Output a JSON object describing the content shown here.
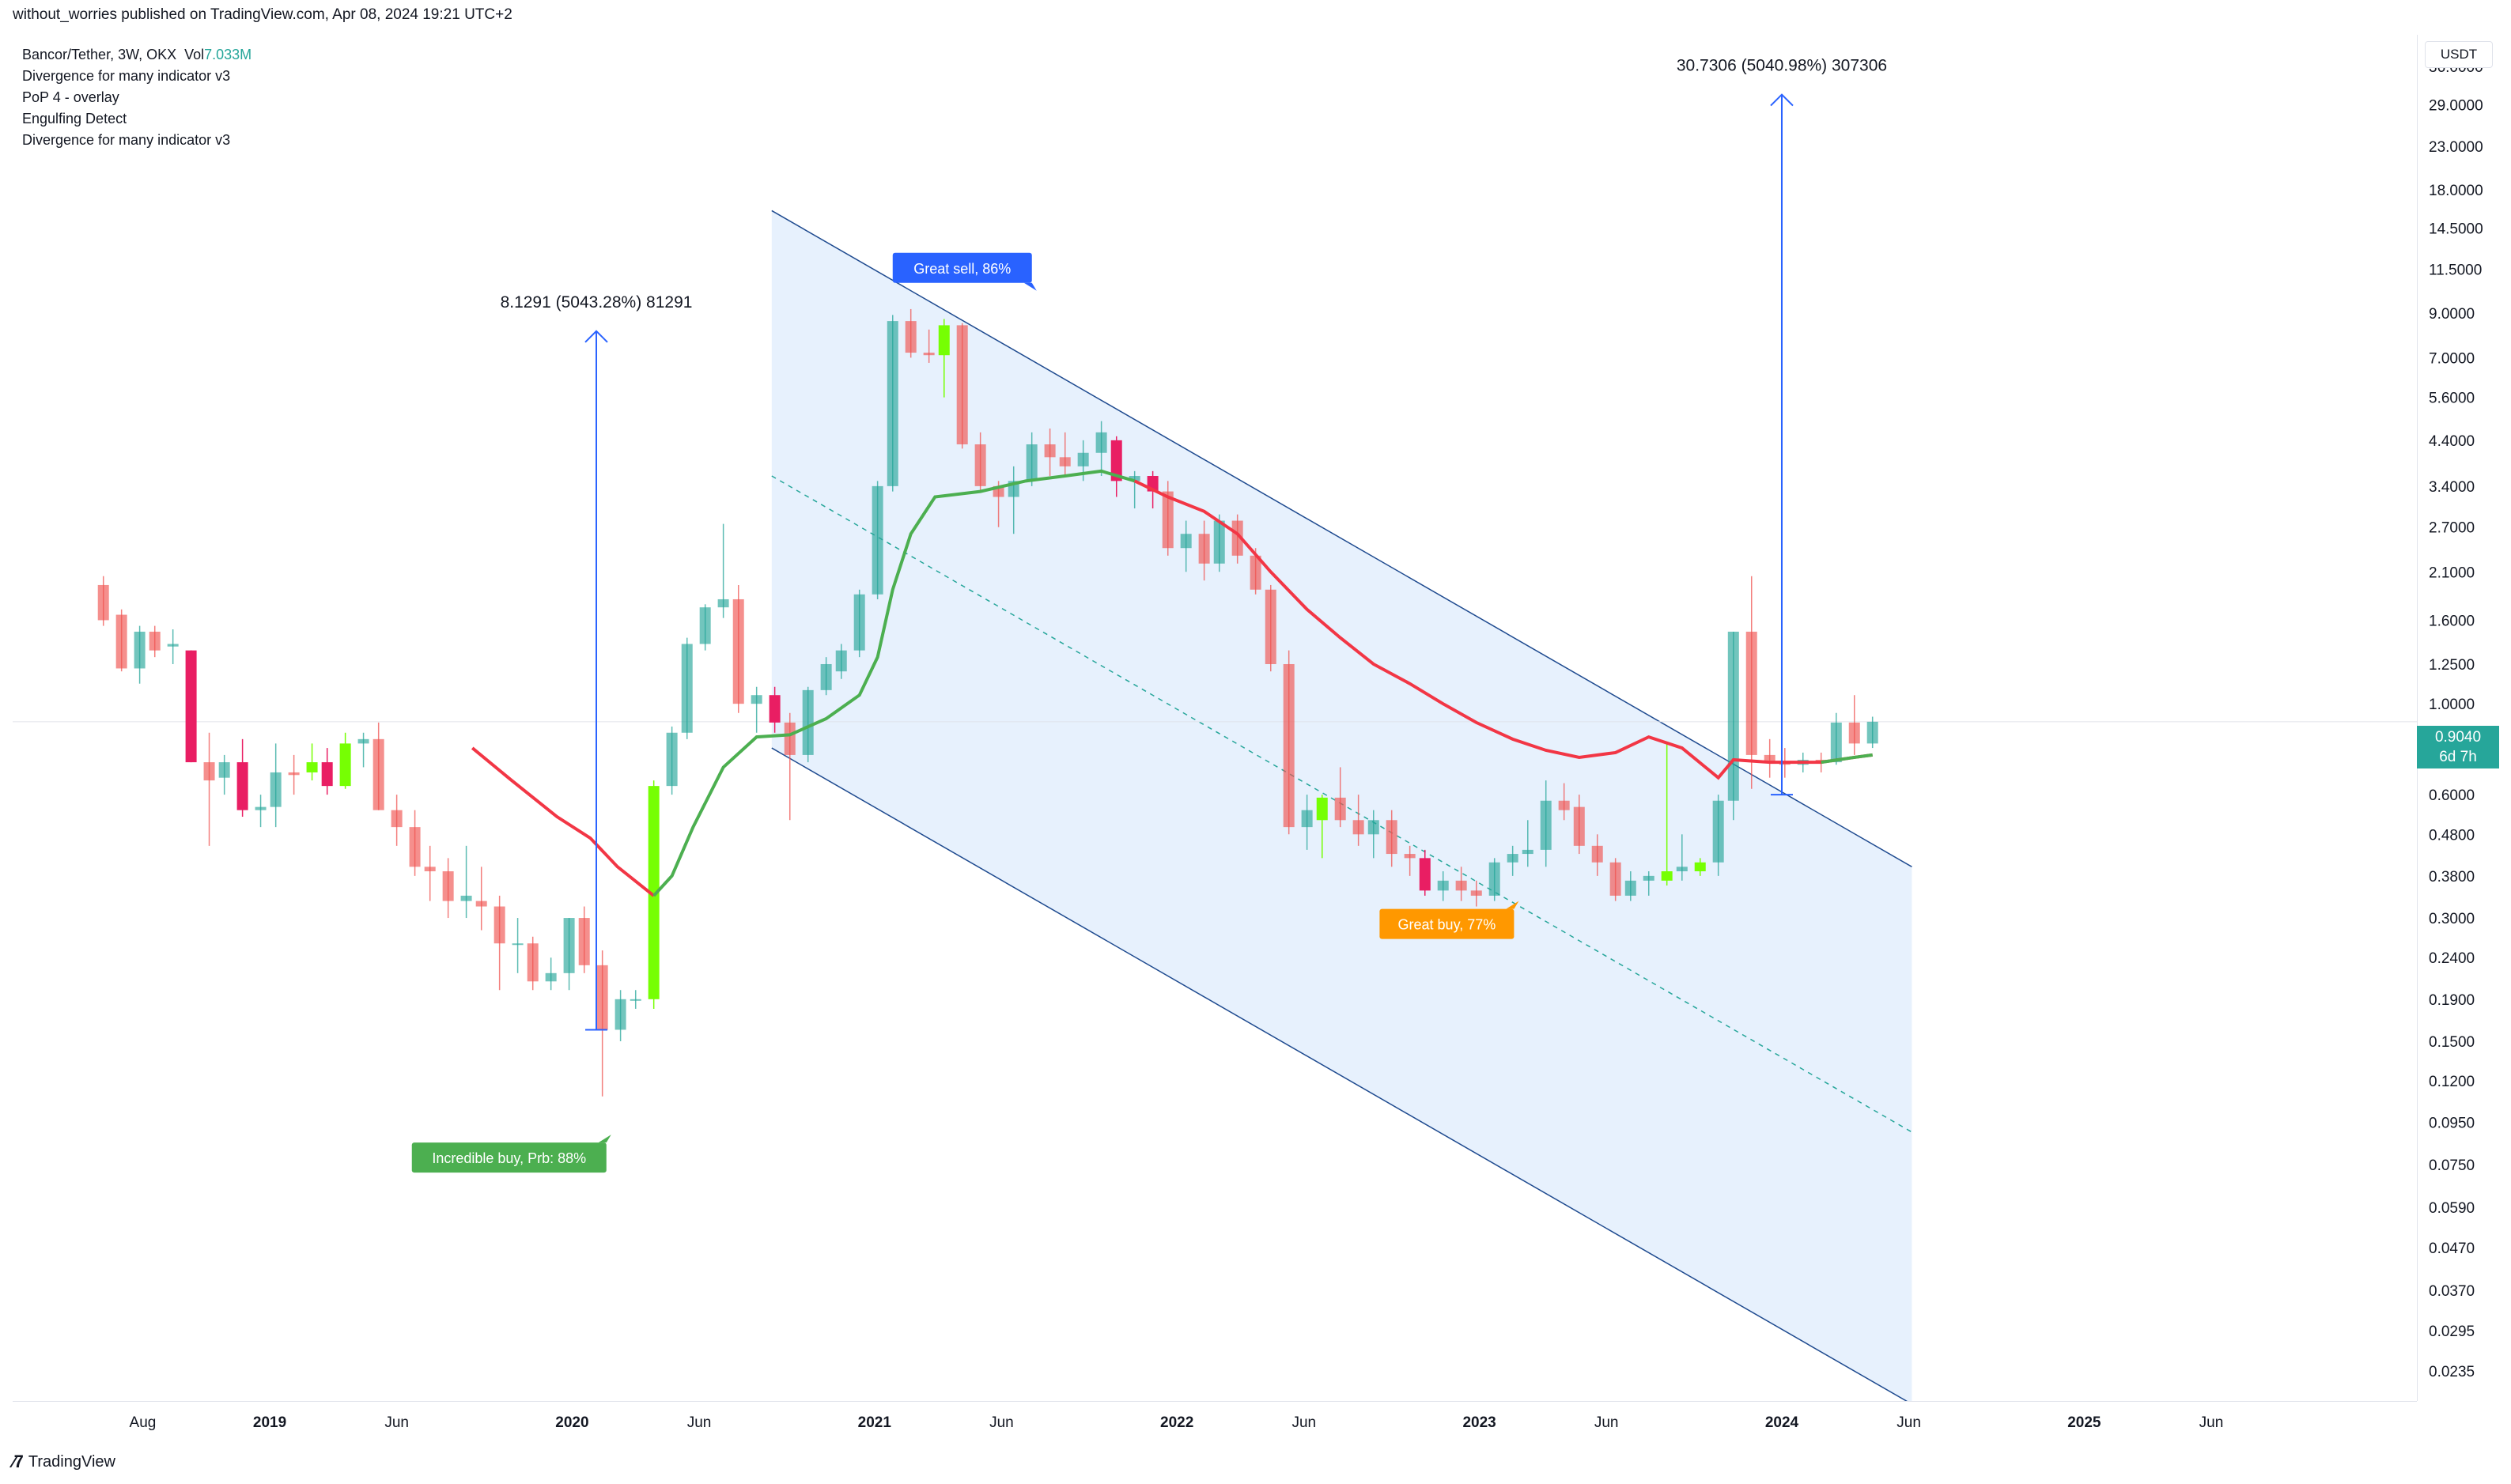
{
  "header": {
    "publish_text": "without_worries published on TradingView.com, Apr 08, 2024 19:21 UTC+2"
  },
  "legend": {
    "symbol_line": "Bancor/Tether, 3W, OKX",
    "vol_label": "Vol",
    "vol_value": "7.033M",
    "indicators": [
      "Divergence for many indicator v3",
      "PoP 4 - overlay",
      "Engulfing Detect",
      "Divergence for many indicator v3"
    ]
  },
  "price_axis": {
    "unit": "USDT",
    "last_price": "0.9040",
    "countdown": "6d 7h"
  },
  "footer": {
    "brand": "TradingView"
  },
  "colors": {
    "up": "#26a69a",
    "down": "#ef5350",
    "engulf_up": "#76ff03",
    "engulf_down": "#e91e63",
    "channel_fill": "#e3effd",
    "channel_line": "#1e4a8f",
    "measure": "#2962ff",
    "ma_green": "#4caf50",
    "ma_red": "#f23645",
    "label_sell": "#2962ff",
    "label_buy": "#ff9800",
    "label_incredible": "#4caf50"
  },
  "chart_data": {
    "type": "candlestick",
    "scale": "log",
    "ylim": [
      0.0235,
      36.0
    ],
    "price_ticks": [
      36.0,
      29.0,
      23.0,
      18.0,
      14.5,
      11.5,
      9.0,
      7.0,
      5.6,
      4.4,
      3.4,
      2.7,
      2.1,
      1.6,
      1.25,
      1.0,
      0.6,
      0.48,
      0.38,
      0.3,
      0.24,
      0.19,
      0.15,
      0.12,
      0.095,
      0.075,
      0.059,
      0.047,
      0.037,
      0.0295,
      0.0235
    ],
    "price_tick_labels": [
      "36.0000",
      "29.0000",
      "23.0000",
      "18.0000",
      "14.5000",
      "11.5000",
      "9.0000",
      "7.0000",
      "5.6000",
      "4.4000",
      "3.4000",
      "2.7000",
      "2.1000",
      "1.6000",
      "1.2500",
      "1.0000",
      "0.6000",
      "0.4800",
      "0.3800",
      "0.3000",
      "0.2400",
      "0.1900",
      "0.1500",
      "0.1200",
      "0.0950",
      "0.0750",
      "0.0590",
      "0.0470",
      "0.0370",
      "0.0295",
      "0.0235"
    ],
    "time_ticks": [
      {
        "label": "Aug",
        "t": 2018.58,
        "bold": false
      },
      {
        "label": "2019",
        "t": 2019.0,
        "bold": true
      },
      {
        "label": "Jun",
        "t": 2019.42,
        "bold": false
      },
      {
        "label": "2020",
        "t": 2020.0,
        "bold": true
      },
      {
        "label": "Jun",
        "t": 2020.42,
        "bold": false
      },
      {
        "label": "2021",
        "t": 2021.0,
        "bold": true
      },
      {
        "label": "Jun",
        "t": 2021.42,
        "bold": false
      },
      {
        "label": "2022",
        "t": 2022.0,
        "bold": true
      },
      {
        "label": "Jun",
        "t": 2022.42,
        "bold": false
      },
      {
        "label": "2023",
        "t": 2023.0,
        "bold": true
      },
      {
        "label": "Jun",
        "t": 2023.42,
        "bold": false
      },
      {
        "label": "2024",
        "t": 2024.0,
        "bold": true
      },
      {
        "label": "Jun",
        "t": 2024.42,
        "bold": false
      },
      {
        "label": "2025",
        "t": 2025.0,
        "bold": true
      },
      {
        "label": "Jun",
        "t": 2025.42,
        "bold": false
      }
    ],
    "xlim": [
      2018.15,
      2026.1
    ],
    "candles": [
      {
        "t": 2018.45,
        "o": 1.95,
        "h": 2.05,
        "l": 1.55,
        "c": 1.6
      },
      {
        "t": 2018.51,
        "o": 1.65,
        "h": 1.7,
        "l": 1.2,
        "c": 1.22
      },
      {
        "t": 2018.57,
        "o": 1.22,
        "h": 1.55,
        "l": 1.12,
        "c": 1.5
      },
      {
        "t": 2018.62,
        "o": 1.5,
        "h": 1.55,
        "l": 1.3,
        "c": 1.35
      },
      {
        "t": 2018.68,
        "o": 1.38,
        "h": 1.52,
        "l": 1.25,
        "c": 1.4
      },
      {
        "t": 2018.74,
        "o": 1.35,
        "h": 1.35,
        "l": 0.72,
        "c": 0.72,
        "e": "down"
      },
      {
        "t": 2018.8,
        "o": 0.72,
        "h": 0.85,
        "l": 0.45,
        "c": 0.65
      },
      {
        "t": 2018.85,
        "o": 0.66,
        "h": 0.75,
        "l": 0.6,
        "c": 0.72
      },
      {
        "t": 2018.91,
        "o": 0.72,
        "h": 0.82,
        "l": 0.53,
        "c": 0.55,
        "e": "down"
      },
      {
        "t": 2018.97,
        "o": 0.55,
        "h": 0.6,
        "l": 0.5,
        "c": 0.56
      },
      {
        "t": 2019.02,
        "o": 0.56,
        "h": 0.8,
        "l": 0.5,
        "c": 0.68
      },
      {
        "t": 2019.08,
        "o": 0.68,
        "h": 0.75,
        "l": 0.6,
        "c": 0.67
      },
      {
        "t": 2019.14,
        "o": 0.68,
        "h": 0.8,
        "l": 0.65,
        "c": 0.72,
        "e": "up"
      },
      {
        "t": 2019.19,
        "o": 0.72,
        "h": 0.78,
        "l": 0.6,
        "c": 0.63,
        "e": "down"
      },
      {
        "t": 2019.25,
        "o": 0.63,
        "h": 0.85,
        "l": 0.62,
        "c": 0.8,
        "e": "up"
      },
      {
        "t": 2019.31,
        "o": 0.8,
        "h": 0.85,
        "l": 0.7,
        "c": 0.82
      },
      {
        "t": 2019.36,
        "o": 0.82,
        "h": 0.9,
        "l": 0.55,
        "c": 0.55
      },
      {
        "t": 2019.42,
        "o": 0.55,
        "h": 0.6,
        "l": 0.45,
        "c": 0.5
      },
      {
        "t": 2019.48,
        "o": 0.5,
        "h": 0.55,
        "l": 0.38,
        "c": 0.4
      },
      {
        "t": 2019.53,
        "o": 0.4,
        "h": 0.45,
        "l": 0.33,
        "c": 0.39
      },
      {
        "t": 2019.59,
        "o": 0.39,
        "h": 0.42,
        "l": 0.3,
        "c": 0.33
      },
      {
        "t": 2019.65,
        "o": 0.33,
        "h": 0.45,
        "l": 0.3,
        "c": 0.34
      },
      {
        "t": 2019.7,
        "o": 0.33,
        "h": 0.4,
        "l": 0.28,
        "c": 0.32
      },
      {
        "t": 2019.76,
        "o": 0.32,
        "h": 0.34,
        "l": 0.2,
        "c": 0.26
      },
      {
        "t": 2019.82,
        "o": 0.26,
        "h": 0.3,
        "l": 0.22,
        "c": 0.26
      },
      {
        "t": 2019.87,
        "o": 0.26,
        "h": 0.27,
        "l": 0.2,
        "c": 0.21
      },
      {
        "t": 2019.93,
        "o": 0.21,
        "h": 0.24,
        "l": 0.2,
        "c": 0.22
      },
      {
        "t": 2019.99,
        "o": 0.22,
        "h": 0.3,
        "l": 0.2,
        "c": 0.3
      },
      {
        "t": 2020.04,
        "o": 0.3,
        "h": 0.32,
        "l": 0.22,
        "c": 0.23
      },
      {
        "t": 2020.1,
        "o": 0.23,
        "h": 0.25,
        "l": 0.11,
        "c": 0.16
      },
      {
        "t": 2020.16,
        "o": 0.16,
        "h": 0.2,
        "l": 0.15,
        "c": 0.19
      },
      {
        "t": 2020.21,
        "o": 0.19,
        "h": 0.2,
        "l": 0.18,
        "c": 0.19
      },
      {
        "t": 2020.27,
        "o": 0.19,
        "h": 0.65,
        "l": 0.18,
        "c": 0.63,
        "e": "up"
      },
      {
        "t": 2020.33,
        "o": 0.63,
        "h": 0.88,
        "l": 0.6,
        "c": 0.85
      },
      {
        "t": 2020.38,
        "o": 0.85,
        "h": 1.45,
        "l": 0.82,
        "c": 1.4
      },
      {
        "t": 2020.44,
        "o": 1.4,
        "h": 1.75,
        "l": 1.35,
        "c": 1.72
      },
      {
        "t": 2020.5,
        "o": 1.72,
        "h": 2.75,
        "l": 1.62,
        "c": 1.8
      },
      {
        "t": 2020.55,
        "o": 1.8,
        "h": 1.95,
        "l": 0.95,
        "c": 1.0
      },
      {
        "t": 2020.61,
        "o": 1.0,
        "h": 1.1,
        "l": 0.85,
        "c": 1.05
      },
      {
        "t": 2020.67,
        "o": 1.05,
        "h": 1.1,
        "l": 0.85,
        "c": 0.9,
        "e": "down"
      },
      {
        "t": 2020.72,
        "o": 0.9,
        "h": 0.95,
        "l": 0.52,
        "c": 0.75
      },
      {
        "t": 2020.78,
        "o": 0.75,
        "h": 1.1,
        "l": 0.72,
        "c": 1.08
      },
      {
        "t": 2020.84,
        "o": 1.08,
        "h": 1.3,
        "l": 1.05,
        "c": 1.25
      },
      {
        "t": 2020.89,
        "o": 1.2,
        "h": 1.4,
        "l": 1.15,
        "c": 1.35
      },
      {
        "t": 2020.95,
        "o": 1.35,
        "h": 1.9,
        "l": 1.3,
        "c": 1.85
      },
      {
        "t": 2021.01,
        "o": 1.85,
        "h": 3.5,
        "l": 1.8,
        "c": 3.4
      },
      {
        "t": 2021.06,
        "o": 3.4,
        "h": 8.9,
        "l": 3.3,
        "c": 8.6
      },
      {
        "t": 2021.12,
        "o": 8.6,
        "h": 9.2,
        "l": 7.0,
        "c": 7.2
      },
      {
        "t": 2021.18,
        "o": 7.2,
        "h": 8.2,
        "l": 6.8,
        "c": 7.1
      },
      {
        "t": 2021.23,
        "o": 7.1,
        "h": 8.7,
        "l": 5.6,
        "c": 8.4,
        "e": "up"
      },
      {
        "t": 2021.29,
        "o": 8.4,
        "h": 8.5,
        "l": 4.2,
        "c": 4.3
      },
      {
        "t": 2021.35,
        "o": 4.3,
        "h": 4.6,
        "l": 3.3,
        "c": 3.4
      },
      {
        "t": 2021.41,
        "o": 3.4,
        "h": 3.5,
        "l": 2.7,
        "c": 3.2
      },
      {
        "t": 2021.46,
        "o": 3.2,
        "h": 3.8,
        "l": 2.6,
        "c": 3.5
      },
      {
        "t": 2021.52,
        "o": 3.5,
        "h": 4.6,
        "l": 3.4,
        "c": 4.3
      },
      {
        "t": 2021.58,
        "o": 4.3,
        "h": 4.7,
        "l": 3.6,
        "c": 4.0
      },
      {
        "t": 2021.63,
        "o": 4.0,
        "h": 4.6,
        "l": 3.6,
        "c": 3.8
      },
      {
        "t": 2021.69,
        "o": 3.8,
        "h": 4.4,
        "l": 3.5,
        "c": 4.1
      },
      {
        "t": 2021.75,
        "o": 4.1,
        "h": 4.9,
        "l": 3.6,
        "c": 4.6
      },
      {
        "t": 2021.8,
        "o": 4.4,
        "h": 4.5,
        "l": 3.2,
        "c": 3.5,
        "e": "down"
      },
      {
        "t": 2021.86,
        "o": 3.5,
        "h": 3.7,
        "l": 3.0,
        "c": 3.6
      },
      {
        "t": 2021.92,
        "o": 3.6,
        "h": 3.7,
        "l": 3.0,
        "c": 3.3,
        "e": "down"
      },
      {
        "t": 2021.97,
        "o": 3.3,
        "h": 3.5,
        "l": 2.3,
        "c": 2.4
      },
      {
        "t": 2022.03,
        "o": 2.4,
        "h": 2.8,
        "l": 2.1,
        "c": 2.6
      },
      {
        "t": 2022.09,
        "o": 2.6,
        "h": 2.8,
        "l": 2.0,
        "c": 2.2
      },
      {
        "t": 2022.14,
        "o": 2.2,
        "h": 2.9,
        "l": 2.1,
        "c": 2.8
      },
      {
        "t": 2022.2,
        "o": 2.8,
        "h": 2.9,
        "l": 2.2,
        "c": 2.3
      },
      {
        "t": 2022.26,
        "o": 2.3,
        "h": 2.4,
        "l": 1.85,
        "c": 1.9
      },
      {
        "t": 2022.31,
        "o": 1.9,
        "h": 1.95,
        "l": 1.2,
        "c": 1.25
      },
      {
        "t": 2022.37,
        "o": 1.25,
        "h": 1.35,
        "l": 0.48,
        "c": 0.5
      },
      {
        "t": 2022.43,
        "o": 0.5,
        "h": 0.6,
        "l": 0.44,
        "c": 0.55
      },
      {
        "t": 2022.48,
        "o": 0.52,
        "h": 0.6,
        "l": 0.42,
        "c": 0.59,
        "e": "up"
      },
      {
        "t": 2022.54,
        "o": 0.59,
        "h": 0.7,
        "l": 0.5,
        "c": 0.52
      },
      {
        "t": 2022.6,
        "o": 0.52,
        "h": 0.6,
        "l": 0.45,
        "c": 0.48
      },
      {
        "t": 2022.65,
        "o": 0.48,
        "h": 0.55,
        "l": 0.42,
        "c": 0.52
      },
      {
        "t": 2022.71,
        "o": 0.52,
        "h": 0.55,
        "l": 0.4,
        "c": 0.43
      },
      {
        "t": 2022.77,
        "o": 0.43,
        "h": 0.45,
        "l": 0.38,
        "c": 0.42
      },
      {
        "t": 2022.82,
        "o": 0.42,
        "h": 0.44,
        "l": 0.34,
        "c": 0.35,
        "e": "down"
      },
      {
        "t": 2022.88,
        "o": 0.35,
        "h": 0.39,
        "l": 0.33,
        "c": 0.37
      },
      {
        "t": 2022.94,
        "o": 0.37,
        "h": 0.4,
        "l": 0.33,
        "c": 0.35
      },
      {
        "t": 2022.99,
        "o": 0.35,
        "h": 0.37,
        "l": 0.32,
        "c": 0.34
      },
      {
        "t": 2023.05,
        "o": 0.34,
        "h": 0.42,
        "l": 0.33,
        "c": 0.41
      },
      {
        "t": 2023.11,
        "o": 0.41,
        "h": 0.45,
        "l": 0.38,
        "c": 0.43
      },
      {
        "t": 2023.16,
        "o": 0.43,
        "h": 0.52,
        "l": 0.4,
        "c": 0.44
      },
      {
        "t": 2023.22,
        "o": 0.44,
        "h": 0.65,
        "l": 0.4,
        "c": 0.58
      },
      {
        "t": 2023.28,
        "o": 0.58,
        "h": 0.64,
        "l": 0.52,
        "c": 0.55
      },
      {
        "t": 2023.33,
        "o": 0.56,
        "h": 0.6,
        "l": 0.43,
        "c": 0.45
      },
      {
        "t": 2023.39,
        "o": 0.45,
        "h": 0.48,
        "l": 0.38,
        "c": 0.41
      },
      {
        "t": 2023.45,
        "o": 0.41,
        "h": 0.42,
        "l": 0.33,
        "c": 0.34
      },
      {
        "t": 2023.5,
        "o": 0.34,
        "h": 0.39,
        "l": 0.33,
        "c": 0.37
      },
      {
        "t": 2023.56,
        "o": 0.37,
        "h": 0.39,
        "l": 0.34,
        "c": 0.38
      },
      {
        "t": 2023.62,
        "o": 0.37,
        "h": 0.8,
        "l": 0.36,
        "c": 0.39,
        "e": "up"
      },
      {
        "t": 2023.67,
        "o": 0.39,
        "h": 0.48,
        "l": 0.37,
        "c": 0.4
      },
      {
        "t": 2023.73,
        "o": 0.39,
        "h": 0.42,
        "l": 0.38,
        "c": 0.41,
        "e": "up"
      },
      {
        "t": 2023.79,
        "o": 0.41,
        "h": 0.6,
        "l": 0.38,
        "c": 0.58
      },
      {
        "t": 2023.84,
        "o": 0.58,
        "h": 1.5,
        "l": 0.52,
        "c": 1.5
      },
      {
        "t": 2023.9,
        "o": 1.5,
        "h": 2.05,
        "l": 0.62,
        "c": 0.75
      },
      {
        "t": 2023.96,
        "o": 0.75,
        "h": 0.82,
        "l": 0.66,
        "c": 0.72
      },
      {
        "t": 2024.01,
        "o": 0.72,
        "h": 0.78,
        "l": 0.66,
        "c": 0.71
      },
      {
        "t": 2024.07,
        "o": 0.71,
        "h": 0.76,
        "l": 0.68,
        "c": 0.73
      },
      {
        "t": 2024.13,
        "o": 0.73,
        "h": 0.76,
        "l": 0.68,
        "c": 0.72
      },
      {
        "t": 2024.18,
        "o": 0.72,
        "h": 0.95,
        "l": 0.71,
        "c": 0.9
      },
      {
        "t": 2024.24,
        "o": 0.9,
        "h": 1.05,
        "l": 0.75,
        "c": 0.8
      },
      {
        "t": 2024.3,
        "o": 0.8,
        "h": 0.93,
        "l": 0.78,
        "c": 0.904
      }
    ],
    "ma_line": {
      "points": [
        [
          2019.67,
          0.78
        ],
        [
          2019.8,
          0.65
        ],
        [
          2019.95,
          0.53
        ],
        [
          2020.06,
          0.47
        ],
        [
          2020.15,
          0.4
        ],
        [
          2020.27,
          0.34
        ],
        [
          2020.33,
          0.38
        ],
        [
          2020.4,
          0.5
        ],
        [
          2020.5,
          0.7
        ],
        [
          2020.61,
          0.83
        ],
        [
          2020.72,
          0.84
        ],
        [
          2020.84,
          0.92
        ],
        [
          2020.95,
          1.05
        ],
        [
          2021.01,
          1.3
        ],
        [
          2021.06,
          1.9
        ],
        [
          2021.12,
          2.6
        ],
        [
          2021.2,
          3.2
        ],
        [
          2021.35,
          3.3
        ],
        [
          2021.5,
          3.5
        ],
        [
          2021.63,
          3.6
        ],
        [
          2021.75,
          3.7
        ],
        [
          2021.86,
          3.5
        ],
        [
          2021.97,
          3.2
        ],
        [
          2022.09,
          2.95
        ],
        [
          2022.2,
          2.6
        ],
        [
          2022.31,
          2.1
        ],
        [
          2022.43,
          1.7
        ],
        [
          2022.54,
          1.45
        ],
        [
          2022.65,
          1.25
        ],
        [
          2022.77,
          1.12
        ],
        [
          2022.88,
          1.0
        ],
        [
          2022.99,
          0.9
        ],
        [
          2023.11,
          0.82
        ],
        [
          2023.22,
          0.77
        ],
        [
          2023.33,
          0.74
        ],
        [
          2023.45,
          0.76
        ],
        [
          2023.56,
          0.83
        ],
        [
          2023.67,
          0.78
        ],
        [
          2023.79,
          0.66
        ],
        [
          2023.84,
          0.73
        ],
        [
          2023.96,
          0.72
        ],
        [
          2024.13,
          0.72
        ],
        [
          2024.24,
          0.74
        ],
        [
          2024.3,
          0.75
        ]
      ],
      "bull_to_red_at": 2021.86
    },
    "channel": {
      "upper": [
        [
          2020.66,
          16.0
        ],
        [
          2024.43,
          0.4
        ]
      ],
      "mid": [
        [
          2020.66,
          3.6
        ],
        [
          2024.43,
          0.09
        ]
      ],
      "lower": [
        [
          2020.66,
          0.78
        ],
        [
          2024.43,
          0.0195
        ]
      ],
      "x_end": 2024.43
    },
    "measurements": [
      {
        "t": 2020.08,
        "from": 0.16,
        "to": 8.1291,
        "label": "8.1291 (5043.28%) 81291"
      },
      {
        "t": 2024.0,
        "from": 0.6,
        "to": 30.7306,
        "label": "30.7306 (5040.98%) 307306"
      }
    ],
    "signals": [
      {
        "text": "Great sell, 86%",
        "kind": "sell"
      },
      {
        "text": "Great buy,  77%",
        "kind": "buy"
      },
      {
        "text": "Incredible buy, Prb: 88%",
        "kind": "incredible"
      }
    ]
  }
}
